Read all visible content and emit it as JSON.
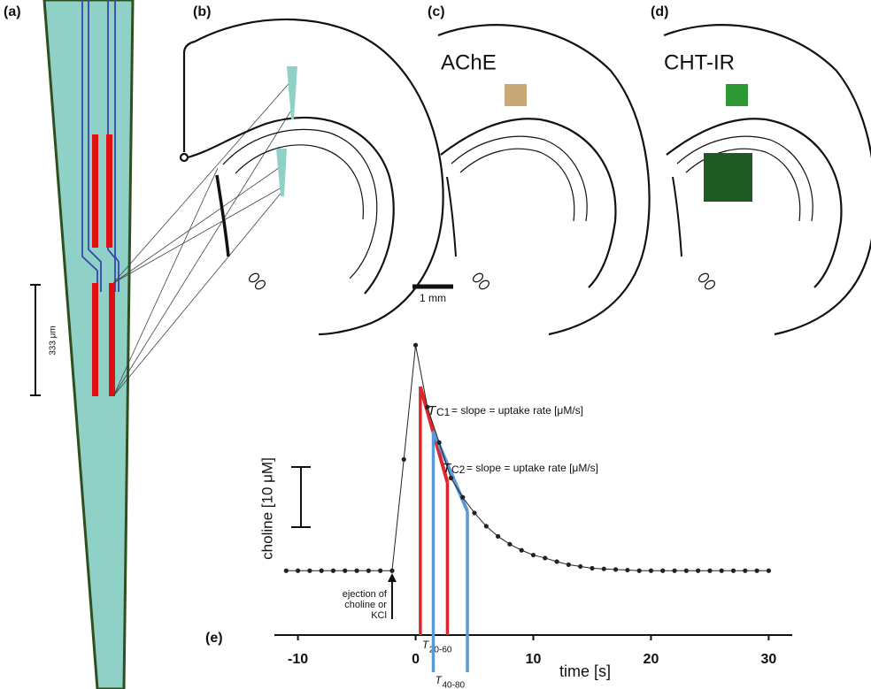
{
  "panel_labels": [
    "(a)",
    "(b)",
    "(c)",
    "(d)",
    "(e)"
  ],
  "panel_a": {
    "scale_label": "333 μm"
  },
  "panel_c": {
    "title": "AChE",
    "scale_label": "1 mm"
  },
  "panel_d": {
    "title": "CHT-IR"
  },
  "chart_data": {
    "type": "line",
    "x": [
      -11,
      -10,
      -9,
      -8,
      -7,
      -6,
      -5,
      -4,
      -3,
      -2,
      -1,
      0,
      1,
      2,
      3,
      4,
      5,
      6,
      7,
      8,
      9,
      10,
      11,
      12,
      13,
      14,
      15,
      16,
      17,
      18,
      19,
      20,
      21,
      22,
      23,
      24,
      25,
      26,
      27,
      28,
      29,
      30
    ],
    "values": [
      0,
      0,
      0,
      0,
      0,
      0,
      0,
      0,
      0,
      0,
      18.5,
      37.5,
      27.2,
      21.3,
      15.4,
      12.2,
      9.6,
      7.4,
      5.7,
      4.4,
      3.4,
      2.6,
      2.1,
      1.5,
      1.0,
      0.7,
      0.4,
      0.3,
      0.2,
      0.1,
      0,
      0,
      0,
      0,
      0,
      0,
      0,
      0,
      0,
      0,
      0,
      0
    ],
    "color": "#222222",
    "xlim": [
      -12,
      32
    ],
    "ylim": [
      -10.7,
      39
    ],
    "xticks": [
      -10,
      0,
      10,
      20,
      30
    ],
    "xlabel": "time [s]",
    "scale_bar": {
      "value": 10,
      "label": "choline [10 μM]"
    },
    "arrow": {
      "x": -2,
      "label": [
        "ejection of",
        "choline or",
        "KCl"
      ]
    },
    "intervals": [
      {
        "symbol": "T",
        "sub": "20-60",
        "color": "#e0262b",
        "x": [
          0.4,
          2.7
        ],
        "y": [
          30.6,
          14.7
        ],
        "eq_symbol": "T",
        "eq_sub": "C1",
        "eq_text": " = slope = uptake rate [μM/s]"
      },
      {
        "symbol": "T",
        "sub": "40-80",
        "color": "#5b9bd5",
        "x": [
          1.5,
          4.4
        ],
        "y": [
          23.2,
          9.9
        ],
        "eq_symbol": "T",
        "eq_sub": "C2",
        "eq_text": " = slope = uptake rate [μM/s]"
      }
    ]
  }
}
